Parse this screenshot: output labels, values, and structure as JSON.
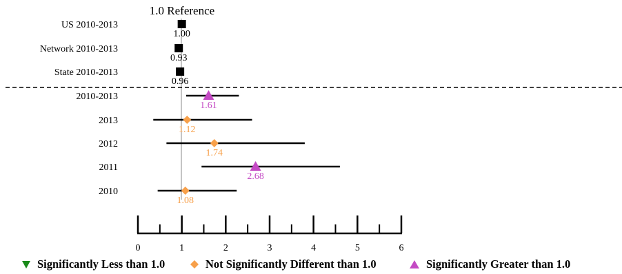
{
  "chart_data": {
    "type": "forest",
    "reference_label": "1.0 Reference",
    "reference_value": 1.0,
    "xlim": [
      0,
      6
    ],
    "x_ticks": [
      "0",
      "1",
      "2",
      "3",
      "4",
      "5",
      "6"
    ],
    "minor_ticks": [
      0.5,
      1.5,
      2.5,
      3.5,
      4.5,
      5.5
    ],
    "rows": [
      {
        "label": "US 2010-2013",
        "value": 1.0,
        "value_label": "1.00",
        "lo": null,
        "hi": null,
        "marker": "square",
        "group": "reference"
      },
      {
        "label": "Network 2010-2013",
        "value": 0.93,
        "value_label": "0.93",
        "lo": null,
        "hi": null,
        "marker": "square",
        "group": "reference"
      },
      {
        "label": "State 2010-2013",
        "value": 0.96,
        "value_label": "0.96",
        "lo": null,
        "hi": null,
        "marker": "square",
        "group": "reference"
      },
      {
        "label": "2010-2013",
        "value": 1.61,
        "value_label": "1.61",
        "lo": 1.1,
        "hi": 2.3,
        "marker": "triangle-up",
        "group": "greater"
      },
      {
        "label": "2013",
        "value": 1.12,
        "value_label": "1.12",
        "lo": 0.35,
        "hi": 2.6,
        "marker": "diamond",
        "group": "not_different"
      },
      {
        "label": "2012",
        "value": 1.74,
        "value_label": "1.74",
        "lo": 0.65,
        "hi": 3.8,
        "marker": "diamond",
        "group": "not_different"
      },
      {
        "label": "2011",
        "value": 2.68,
        "value_label": "2.68",
        "lo": 1.45,
        "hi": 4.6,
        "marker": "triangle-up",
        "group": "greater"
      },
      {
        "label": "2010",
        "value": 1.08,
        "value_label": "1.08",
        "lo": 0.45,
        "hi": 2.25,
        "marker": "diamond",
        "group": "not_different"
      }
    ],
    "colors": {
      "reference": "#000000",
      "less": "#1a8a1a",
      "not_different": "#f7a04a",
      "greater": "#c44ac4"
    },
    "legend": [
      {
        "label": "Significantly Less than 1.0",
        "marker": "triangle-down",
        "group": "less"
      },
      {
        "label": "Not Significantly Different than 1.0",
        "marker": "diamond",
        "group": "not_different"
      },
      {
        "label": "Significantly Greater than 1.0",
        "marker": "triangle-up",
        "group": "greater"
      }
    ]
  }
}
